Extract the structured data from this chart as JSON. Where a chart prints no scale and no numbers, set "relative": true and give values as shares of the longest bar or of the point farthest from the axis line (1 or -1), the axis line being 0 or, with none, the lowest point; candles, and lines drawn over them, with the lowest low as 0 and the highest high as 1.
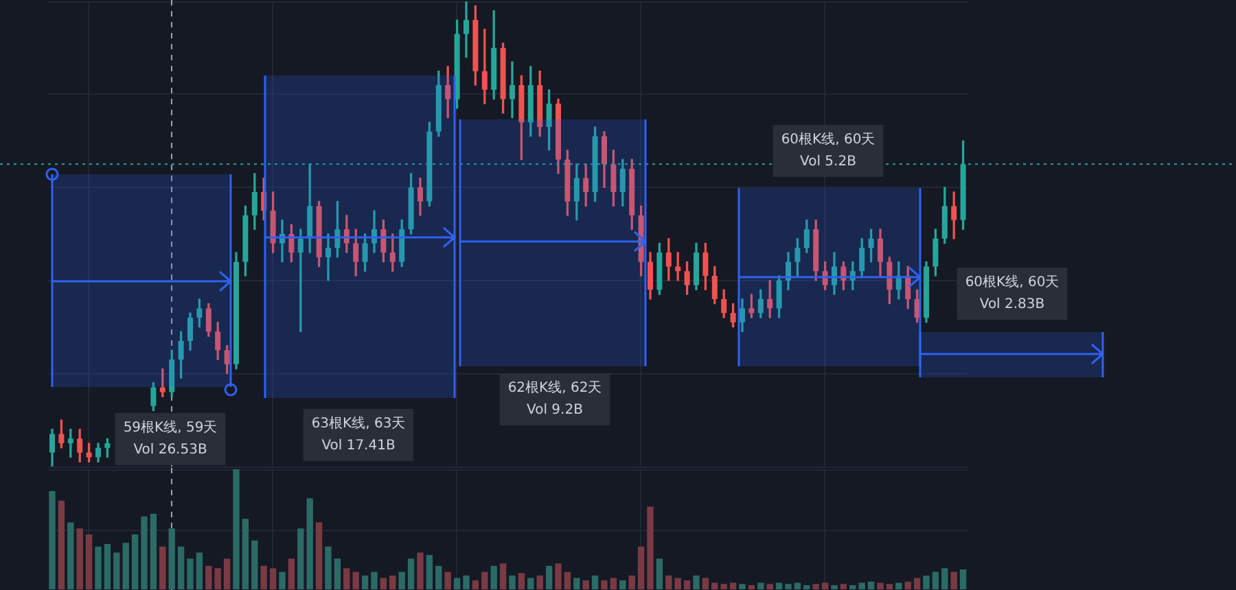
{
  "chart_data": [
    {
      "type": "candlestick",
      "relative": true,
      "grid": true,
      "categories": [
        null,
        null,
        null,
        null,
        null,
        null,
        null,
        null,
        null,
        null,
        null,
        null,
        null,
        null,
        null,
        null,
        null,
        null,
        null,
        null,
        null,
        null,
        null,
        null,
        null,
        null,
        null,
        null,
        null,
        null,
        null,
        null,
        null,
        null,
        null,
        null,
        null,
        null,
        null,
        null,
        null,
        null,
        null,
        null,
        null,
        null,
        null,
        null,
        null,
        null,
        null,
        null,
        null,
        null,
        null,
        null,
        null,
        null,
        null,
        null,
        null,
        null,
        null,
        null,
        null,
        null,
        null,
        null,
        null,
        null,
        null,
        null,
        null,
        null,
        null,
        null,
        null,
        null,
        null,
        null,
        null,
        null,
        null,
        null,
        null,
        null,
        null,
        null,
        null,
        null,
        null,
        null,
        null,
        null,
        null,
        null,
        null,
        null,
        null,
        null
      ],
      "ohlc": [
        [
          0.03,
          0.08,
          0,
          0.07
        ],
        [
          0.07,
          0.1,
          0.04,
          0.05
        ],
        [
          0.05,
          0.08,
          0.02,
          0.06
        ],
        [
          0.06,
          0.08,
          0.01,
          0.03
        ],
        [
          0.03,
          0.05,
          0.01,
          0.02
        ],
        [
          0.02,
          0.05,
          0.01,
          0.04
        ],
        [
          0.04,
          0.06,
          0.02,
          0.05
        ],
        null,
        null,
        null,
        null,
        [
          0.13,
          0.18,
          0.12,
          0.17
        ],
        [
          0.17,
          0.21,
          0.15,
          0.16
        ],
        [
          0.16,
          0.25,
          0.15,
          0.23
        ],
        [
          0.23,
          0.29,
          0.19,
          0.27
        ],
        [
          0.27,
          0.33,
          0.25,
          0.32
        ],
        [
          0.32,
          0.36,
          0.3,
          0.34
        ],
        [
          0.34,
          0.35,
          0.28,
          0.29
        ],
        [
          0.29,
          0.31,
          0.23,
          0.25
        ],
        [
          0.25,
          0.26,
          0.2,
          0.22
        ],
        [
          0.22,
          0.46,
          0.21,
          0.44
        ],
        [
          0.44,
          0.56,
          0.41,
          0.54
        ],
        [
          0.54,
          0.63,
          0.51,
          0.59
        ],
        [
          0.59,
          0.62,
          0.53,
          0.55
        ],
        [
          0.55,
          0.59,
          0.46,
          0.48
        ],
        [
          0.48,
          0.53,
          0.44,
          0.5
        ],
        [
          0.5,
          0.52,
          0.44,
          0.46
        ],
        [
          0.46,
          0.51,
          0.29,
          0.49
        ],
        [
          0.49,
          0.65,
          0.46,
          0.56
        ],
        [
          0.56,
          0.57,
          0.43,
          0.45
        ],
        [
          0.45,
          0.5,
          0.4,
          0.47
        ],
        [
          0.47,
          0.57,
          0.45,
          0.51
        ],
        [
          0.51,
          0.54,
          0.46,
          0.48
        ],
        [
          0.48,
          0.51,
          0.41,
          0.44
        ],
        [
          0.44,
          0.5,
          0.42,
          0.48
        ],
        [
          0.48,
          0.55,
          0.46,
          0.51
        ],
        [
          0.51,
          0.53,
          0.44,
          0.46
        ],
        [
          0.46,
          0.5,
          0.42,
          0.44
        ],
        [
          0.44,
          0.53,
          0.43,
          0.51
        ],
        [
          0.51,
          0.63,
          0.5,
          0.6
        ],
        [
          0.6,
          0.62,
          0.54,
          0.57
        ],
        [
          0.57,
          0.74,
          0.56,
          0.72
        ],
        [
          0.72,
          0.85,
          0.71,
          0.82
        ],
        [
          0.82,
          0.86,
          0.75,
          0.79
        ],
        [
          0.79,
          0.96,
          0.77,
          0.93
        ],
        [
          0.93,
          1,
          0.88,
          0.96
        ],
        [
          0.96,
          0.99,
          0.82,
          0.85
        ],
        [
          0.85,
          0.94,
          0.78,
          0.81
        ],
        [
          0.81,
          0.98,
          0.79,
          0.9
        ],
        [
          0.9,
          0.91,
          0.76,
          0.79
        ],
        [
          0.79,
          0.87,
          0.75,
          0.82
        ],
        [
          0.82,
          0.84,
          0.66,
          0.74
        ],
        [
          0.74,
          0.86,
          0.71,
          0.82
        ],
        [
          0.82,
          0.85,
          0.71,
          0.73
        ],
        [
          0.73,
          0.81,
          0.68,
          0.78
        ],
        [
          0.78,
          0.79,
          0.63,
          0.66
        ],
        [
          0.66,
          0.68,
          0.54,
          0.57
        ],
        [
          0.57,
          0.65,
          0.53,
          0.62
        ],
        [
          0.62,
          0.65,
          0.56,
          0.59
        ],
        [
          0.59,
          0.73,
          0.57,
          0.71
        ],
        [
          0.71,
          0.72,
          0.6,
          0.65
        ],
        [
          0.65,
          0.68,
          0.56,
          0.59
        ],
        [
          0.59,
          0.66,
          0.56,
          0.64
        ],
        [
          0.64,
          0.66,
          0.51,
          0.54
        ],
        [
          0.54,
          0.56,
          0.41,
          0.44
        ],
        [
          0.44,
          0.46,
          0.36,
          0.38
        ],
        [
          0.38,
          0.48,
          0.37,
          0.46
        ],
        [
          0.46,
          0.49,
          0.4,
          0.43
        ],
        [
          0.43,
          0.46,
          0.4,
          0.42
        ],
        [
          0.42,
          0.44,
          0.37,
          0.39
        ],
        [
          0.39,
          0.48,
          0.38,
          0.46
        ],
        [
          0.46,
          0.48,
          0.38,
          0.41
        ],
        [
          0.41,
          0.43,
          0.35,
          0.36
        ],
        [
          0.36,
          0.38,
          0.32,
          0.33
        ],
        [
          0.33,
          0.35,
          0.3,
          0.31
        ],
        [
          0.31,
          0.36,
          0.29,
          0.34
        ],
        [
          0.34,
          0.37,
          0.32,
          0.33
        ],
        [
          0.33,
          0.38,
          0.32,
          0.36
        ],
        [
          0.36,
          0.4,
          0.32,
          0.34
        ],
        [
          0.34,
          0.41,
          0.32,
          0.4
        ],
        [
          0.4,
          0.46,
          0.38,
          0.44
        ],
        [
          0.44,
          0.49,
          0.41,
          0.47
        ],
        [
          0.47,
          0.53,
          0.46,
          0.51
        ],
        [
          0.51,
          0.53,
          0.4,
          0.42
        ],
        [
          0.42,
          0.44,
          0.38,
          0.39
        ],
        [
          0.39,
          0.46,
          0.37,
          0.43
        ],
        [
          0.43,
          0.44,
          0.38,
          0.4
        ],
        [
          0.4,
          0.44,
          0.38,
          0.42
        ],
        [
          0.42,
          0.49,
          0.41,
          0.47
        ],
        [
          0.47,
          0.51,
          0.44,
          0.49
        ],
        [
          0.49,
          0.51,
          0.41,
          0.44
        ],
        [
          0.44,
          0.45,
          0.35,
          0.38
        ],
        [
          0.38,
          0.44,
          0.36,
          0.41
        ],
        [
          0.41,
          0.43,
          0.34,
          0.36
        ],
        [
          0.36,
          0.38,
          0.31,
          0.32
        ],
        [
          0.32,
          0.44,
          0.31,
          0.43
        ],
        [
          0.43,
          0.51,
          0.41,
          0.49
        ],
        [
          0.49,
          0.6,
          0.48,
          0.56
        ],
        [
          0.56,
          0.59,
          0.49,
          0.53
        ],
        [
          0.53,
          0.7,
          0.51,
          0.65
        ]
      ],
      "colors": [
        "#26a69a",
        "#ef5350",
        "#26a69a",
        "#ef5350",
        "#ef5350",
        "#26a69a",
        "#26a69a",
        null,
        null,
        null,
        null,
        "#26a69a",
        "#ef5350",
        "#26a69a",
        "#26a69a",
        "#26a69a",
        "#26a69a",
        "#ef5350",
        "#ef5350",
        "#ef5350",
        "#26a69a",
        "#26a69a",
        "#26a69a",
        "#ef5350",
        "#ef5350",
        "#26a69a",
        "#ef5350",
        "#26a69a",
        "#26a69a",
        "#ef5350",
        "#26a69a",
        "#26a69a",
        "#ef5350",
        "#ef5350",
        "#26a69a",
        "#26a69a",
        "#ef5350",
        "#ef5350",
        "#26a69a",
        "#26a69a",
        "#ef5350",
        "#26a69a",
        "#26a69a",
        "#ef5350",
        "#26a69a",
        "#26a69a",
        "#ef5350",
        "#ef5350",
        "#26a69a",
        "#ef5350",
        "#26a69a",
        "#ef5350",
        "#26a69a",
        "#ef5350",
        "#26a69a",
        "#ef5350",
        "#ef5350",
        "#26a69a",
        "#ef5350",
        "#26a69a",
        "#ef5350",
        "#ef5350",
        "#26a69a",
        "#ef5350",
        "#ef5350",
        "#ef5350",
        "#26a69a",
        "#ef5350",
        "#ef5350",
        "#ef5350",
        "#26a69a",
        "#ef5350",
        "#ef5350",
        "#ef5350",
        "#ef5350",
        "#26a69a",
        "#ef5350",
        "#26a69a",
        "#ef5350",
        "#26a69a",
        "#26a69a",
        "#26a69a",
        "#26a69a",
        "#ef5350",
        "#ef5350",
        "#26a69a",
        "#ef5350",
        "#26a69a",
        "#26a69a",
        "#26a69a",
        "#ef5350",
        "#ef5350",
        "#26a69a",
        "#ef5350",
        "#ef5350",
        "#26a69a",
        "#26a69a",
        "#26a69a",
        "#ef5350",
        "#26a69a"
      ],
      "ref_lines": [
        {
          "axis": "y",
          "value": 0.65,
          "color": "#26a69a",
          "line_style": "dotted"
        }
      ],
      "annotations": [
        "59根K线, 59天\nVol 26.53B",
        "63根K线, 63天\nVol 17.41B",
        "62根K线, 62天\nVol 9.2B",
        "60根K线, 60天\nVol 5.2B",
        "60根K线, 60天\nVol 2.83B"
      ]
    },
    {
      "type": "bar",
      "relative": true,
      "grid": true,
      "categories": [
        null,
        null,
        null,
        null,
        null,
        null,
        null,
        null,
        null,
        null,
        null,
        null,
        null,
        null,
        null,
        null,
        null,
        null,
        null,
        null,
        null,
        null,
        null,
        null,
        null,
        null,
        null,
        null,
        null,
        null,
        null,
        null,
        null,
        null,
        null,
        null,
        null,
        null,
        null,
        null,
        null,
        null,
        null,
        null,
        null,
        null,
        null,
        null,
        null,
        null,
        null,
        null,
        null,
        null,
        null,
        null,
        null,
        null,
        null,
        null,
        null,
        null,
        null,
        null,
        null,
        null,
        null,
        null,
        null,
        null,
        null,
        null,
        null,
        null,
        null,
        null,
        null,
        null,
        null,
        null,
        null,
        null,
        null,
        null,
        null,
        null,
        null,
        null,
        null,
        null,
        null,
        null,
        null,
        null,
        null,
        null,
        null,
        null,
        null,
        null
      ],
      "values": [
        0.82,
        0.74,
        0.56,
        0.51,
        0.46,
        0.36,
        0.38,
        0.31,
        0.39,
        0.46,
        0.61,
        0.63,
        0.36,
        0.51,
        0.36,
        0.26,
        0.31,
        0.2,
        0.18,
        0.26,
        1,
        0.59,
        0.41,
        0.2,
        0.18,
        0.15,
        0.26,
        0.51,
        0.76,
        0.56,
        0.36,
        0.26,
        0.18,
        0.15,
        0.12,
        0.15,
        0.1,
        0.12,
        0.15,
        0.26,
        0.31,
        0.29,
        0.2,
        0.15,
        0.1,
        0.12,
        0.08,
        0.15,
        0.2,
        0.22,
        0.12,
        0.14,
        0.1,
        0.12,
        0.2,
        0.22,
        0.15,
        0.1,
        0.08,
        0.12,
        0.08,
        0.1,
        0.08,
        0.12,
        0.36,
        0.69,
        0.26,
        0.12,
        0.1,
        0.08,
        0.12,
        0.1,
        0.06,
        0.05,
        0.06,
        0.05,
        0.04,
        0.06,
        0.05,
        0.06,
        0.05,
        0.06,
        0.04,
        0.05,
        0.06,
        0.04,
        0.05,
        0.04,
        0.06,
        0.07,
        0.06,
        0.05,
        0.06,
        0.07,
        0.1,
        0.12,
        0.15,
        0.18,
        0.15,
        0.17
      ],
      "colors": [
        "#2b6b66",
        "#7a3a44",
        "#2b6b66",
        "#7a3a44",
        "#7a3a44",
        "#2b6b66",
        "#2b6b66",
        "#2b6b66",
        "#2b6b66",
        "#2b6b66",
        "#2b6b66",
        "#2b6b66",
        "#7a3a44",
        "#2b6b66",
        "#2b6b66",
        "#2b6b66",
        "#2b6b66",
        "#7a3a44",
        "#7a3a44",
        "#7a3a44",
        "#2b6b66",
        "#2b6b66",
        "#2b6b66",
        "#7a3a44",
        "#7a3a44",
        "#2b6b66",
        "#7a3a44",
        "#2b6b66",
        "#2b6b66",
        "#7a3a44",
        "#2b6b66",
        "#2b6b66",
        "#7a3a44",
        "#7a3a44",
        "#2b6b66",
        "#2b6b66",
        "#7a3a44",
        "#7a3a44",
        "#2b6b66",
        "#2b6b66",
        "#7a3a44",
        "#2b6b66",
        "#2b6b66",
        "#7a3a44",
        "#2b6b66",
        "#2b6b66",
        "#7a3a44",
        "#7a3a44",
        "#2b6b66",
        "#7a3a44",
        "#2b6b66",
        "#7a3a44",
        "#2b6b66",
        "#7a3a44",
        "#2b6b66",
        "#7a3a44",
        "#7a3a44",
        "#2b6b66",
        "#7a3a44",
        "#2b6b66",
        "#7a3a44",
        "#7a3a44",
        "#2b6b66",
        "#7a3a44",
        "#7a3a44",
        "#7a3a44",
        "#2b6b66",
        "#7a3a44",
        "#7a3a44",
        "#7a3a44",
        "#2b6b66",
        "#7a3a44",
        "#7a3a44",
        "#7a3a44",
        "#7a3a44",
        "#2b6b66",
        "#7a3a44",
        "#2b6b66",
        "#7a3a44",
        "#2b6b66",
        "#2b6b66",
        "#2b6b66",
        "#2b6b66",
        "#7a3a44",
        "#7a3a44",
        "#2b6b66",
        "#7a3a44",
        "#2b6b66",
        "#2b6b66",
        "#2b6b66",
        "#7a3a44",
        "#7a3a44",
        "#2b6b66",
        "#7a3a44",
        "#7a3a44",
        "#2b6b66",
        "#2b6b66",
        "#2b6b66",
        "#7a3a44",
        "#2b6b66"
      ]
    }
  ]
}
